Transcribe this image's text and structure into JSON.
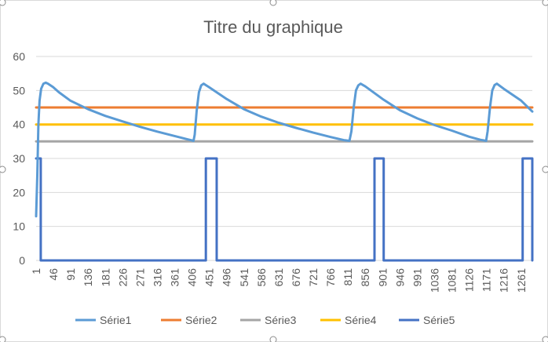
{
  "chart_data": {
    "type": "line",
    "title": "Titre du graphique",
    "xlabel": "",
    "ylabel": "",
    "ylim": [
      0,
      60
    ],
    "xlim": [
      1,
      1290
    ],
    "y_ticks": [
      0,
      10,
      20,
      30,
      40,
      50,
      60
    ],
    "x_tick_labels": [
      "1",
      "46",
      "91",
      "136",
      "181",
      "226",
      "271",
      "316",
      "361",
      "406",
      "451",
      "496",
      "541",
      "586",
      "631",
      "676",
      "721",
      "766",
      "811",
      "856",
      "901",
      "946",
      "991",
      "1036",
      "1081",
      "1126",
      "1171",
      "1216",
      "1261"
    ],
    "grid": "horizontal",
    "legend_position": "bottom",
    "series": [
      {
        "name": "Série1",
        "color": "#5b9bd5",
        "points": [
          [
            1,
            13
          ],
          [
            4,
            25
          ],
          [
            7,
            40
          ],
          [
            10,
            47
          ],
          [
            14,
            50.5
          ],
          [
            20,
            52
          ],
          [
            26,
            52.3
          ],
          [
            32,
            52
          ],
          [
            45,
            51
          ],
          [
            60,
            49.5
          ],
          [
            90,
            47
          ],
          [
            136,
            44.5
          ],
          [
            181,
            42.5
          ],
          [
            226,
            40.9
          ],
          [
            271,
            39.3
          ],
          [
            316,
            37.9
          ],
          [
            361,
            36.6
          ],
          [
            395,
            35.6
          ],
          [
            410,
            35.2
          ],
          [
            413,
            37
          ],
          [
            418,
            44
          ],
          [
            424,
            49.5
          ],
          [
            430,
            51.5
          ],
          [
            436,
            52
          ],
          [
            450,
            51
          ],
          [
            496,
            47.5
          ],
          [
            541,
            44.5
          ],
          [
            586,
            42.3
          ],
          [
            631,
            40.5
          ],
          [
            676,
            39
          ],
          [
            721,
            37.6
          ],
          [
            766,
            36.3
          ],
          [
            800,
            35.4
          ],
          [
            815,
            35.2
          ],
          [
            820,
            38
          ],
          [
            826,
            45
          ],
          [
            832,
            50
          ],
          [
            838,
            51.5
          ],
          [
            844,
            52
          ],
          [
            856,
            51.2
          ],
          [
            901,
            47.5
          ],
          [
            946,
            44.2
          ],
          [
            991,
            41.8
          ],
          [
            1036,
            39.8
          ],
          [
            1081,
            38.2
          ],
          [
            1126,
            36.4
          ],
          [
            1155,
            35.5
          ],
          [
            1170,
            35.2
          ],
          [
            1174,
            38
          ],
          [
            1180,
            45
          ],
          [
            1186,
            50
          ],
          [
            1192,
            51.6
          ],
          [
            1198,
            52
          ],
          [
            1216,
            50.5
          ],
          [
            1261,
            47
          ],
          [
            1290,
            43.8
          ]
        ]
      },
      {
        "name": "Série2",
        "color": "#ed7d31",
        "points": [
          [
            1,
            45
          ],
          [
            1290,
            45
          ]
        ]
      },
      {
        "name": "Série3",
        "color": "#a5a5a5",
        "points": [
          [
            1,
            35
          ],
          [
            1290,
            35
          ]
        ]
      },
      {
        "name": "Série4",
        "color": "#ffc000",
        "points": [
          [
            1,
            40
          ],
          [
            1290,
            40
          ]
        ]
      },
      {
        "name": "Série5",
        "color": "#4472c4",
        "points": [
          [
            1,
            30
          ],
          [
            13,
            30
          ],
          [
            13,
            0
          ],
          [
            442,
            0
          ],
          [
            442,
            30
          ],
          [
            470,
            30
          ],
          [
            470,
            0
          ],
          [
            880,
            0
          ],
          [
            880,
            30
          ],
          [
            904,
            30
          ],
          [
            904,
            0
          ],
          [
            1265,
            0
          ],
          [
            1265,
            30
          ],
          [
            1295,
            30
          ],
          [
            1295,
            0
          ],
          [
            1290,
            0
          ]
        ]
      }
    ]
  }
}
